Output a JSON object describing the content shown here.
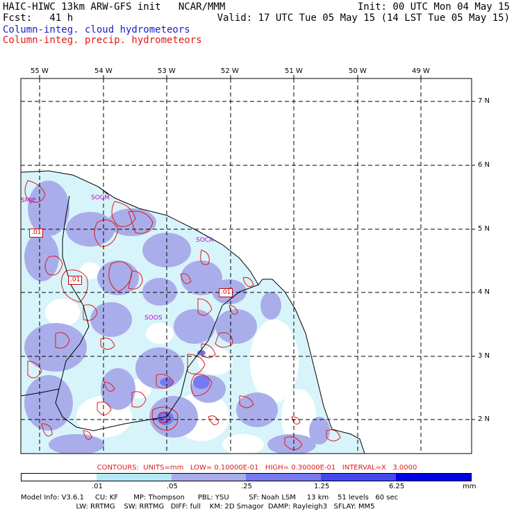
{
  "header": {
    "line1_left": "HAIC-HIWC 13km ARW-GFS init   NCAR/MMM",
    "line1_right": "Init: 00 UTC Mon 04 May 15",
    "line2_left": "Fcst:   41 h",
    "line2_right": "Valid: 17 UTC Tue 05 May 15 (14 LST Tue 05 May 15)",
    "field1": "Column-integ. cloud hydrometeors",
    "field2": "Column-integ. precip. hydrometeors"
  },
  "colors": {
    "cloud_field": "#1a1acc",
    "precip_field": "#e01818",
    "shade_1": "#d8f4fb",
    "shade_2": "#b5e9f5",
    "shade_3": "#a9aeea",
    "shade_4": "#7779f0",
    "shade_5": "#0000e6",
    "station": "#cc00cc"
  },
  "map": {
    "lon_labels": [
      "55 W",
      "54 W",
      "53 W",
      "52 W",
      "51 W",
      "50 W",
      "49 W"
    ],
    "lat_labels": [
      "7 N",
      "6 N",
      "5 N",
      "4 N",
      "3 N",
      "2 N"
    ],
    "stations": [
      "SMJP",
      "SOCM",
      "SOCA",
      "SOOS"
    ],
    "contour_values": [
      ".01",
      ".01",
      ".01"
    ]
  },
  "legend": {
    "contours_text": "CONTOURS:  UNITS=mm   LOW= 0.10000E-01   HIGH= 0.30000E-01   INTERVAL=X   3.0000",
    "scale_labels": [
      ".01",
      ".05",
      ".25",
      "1.25",
      "6.25",
      "mm"
    ]
  },
  "model_info": {
    "line1": "Model Info: V3.6.1     CU: KF       MP: Thompson      PBL: YSU         SF: Noah LSM     13 km    51 levels   60 sec",
    "line2": "                         LW: RRTMG    SW: RRTMG   DIFF: full    KM: 2D Smagor  DAMP: Rayleigh3   SFLAY: MM5"
  }
}
